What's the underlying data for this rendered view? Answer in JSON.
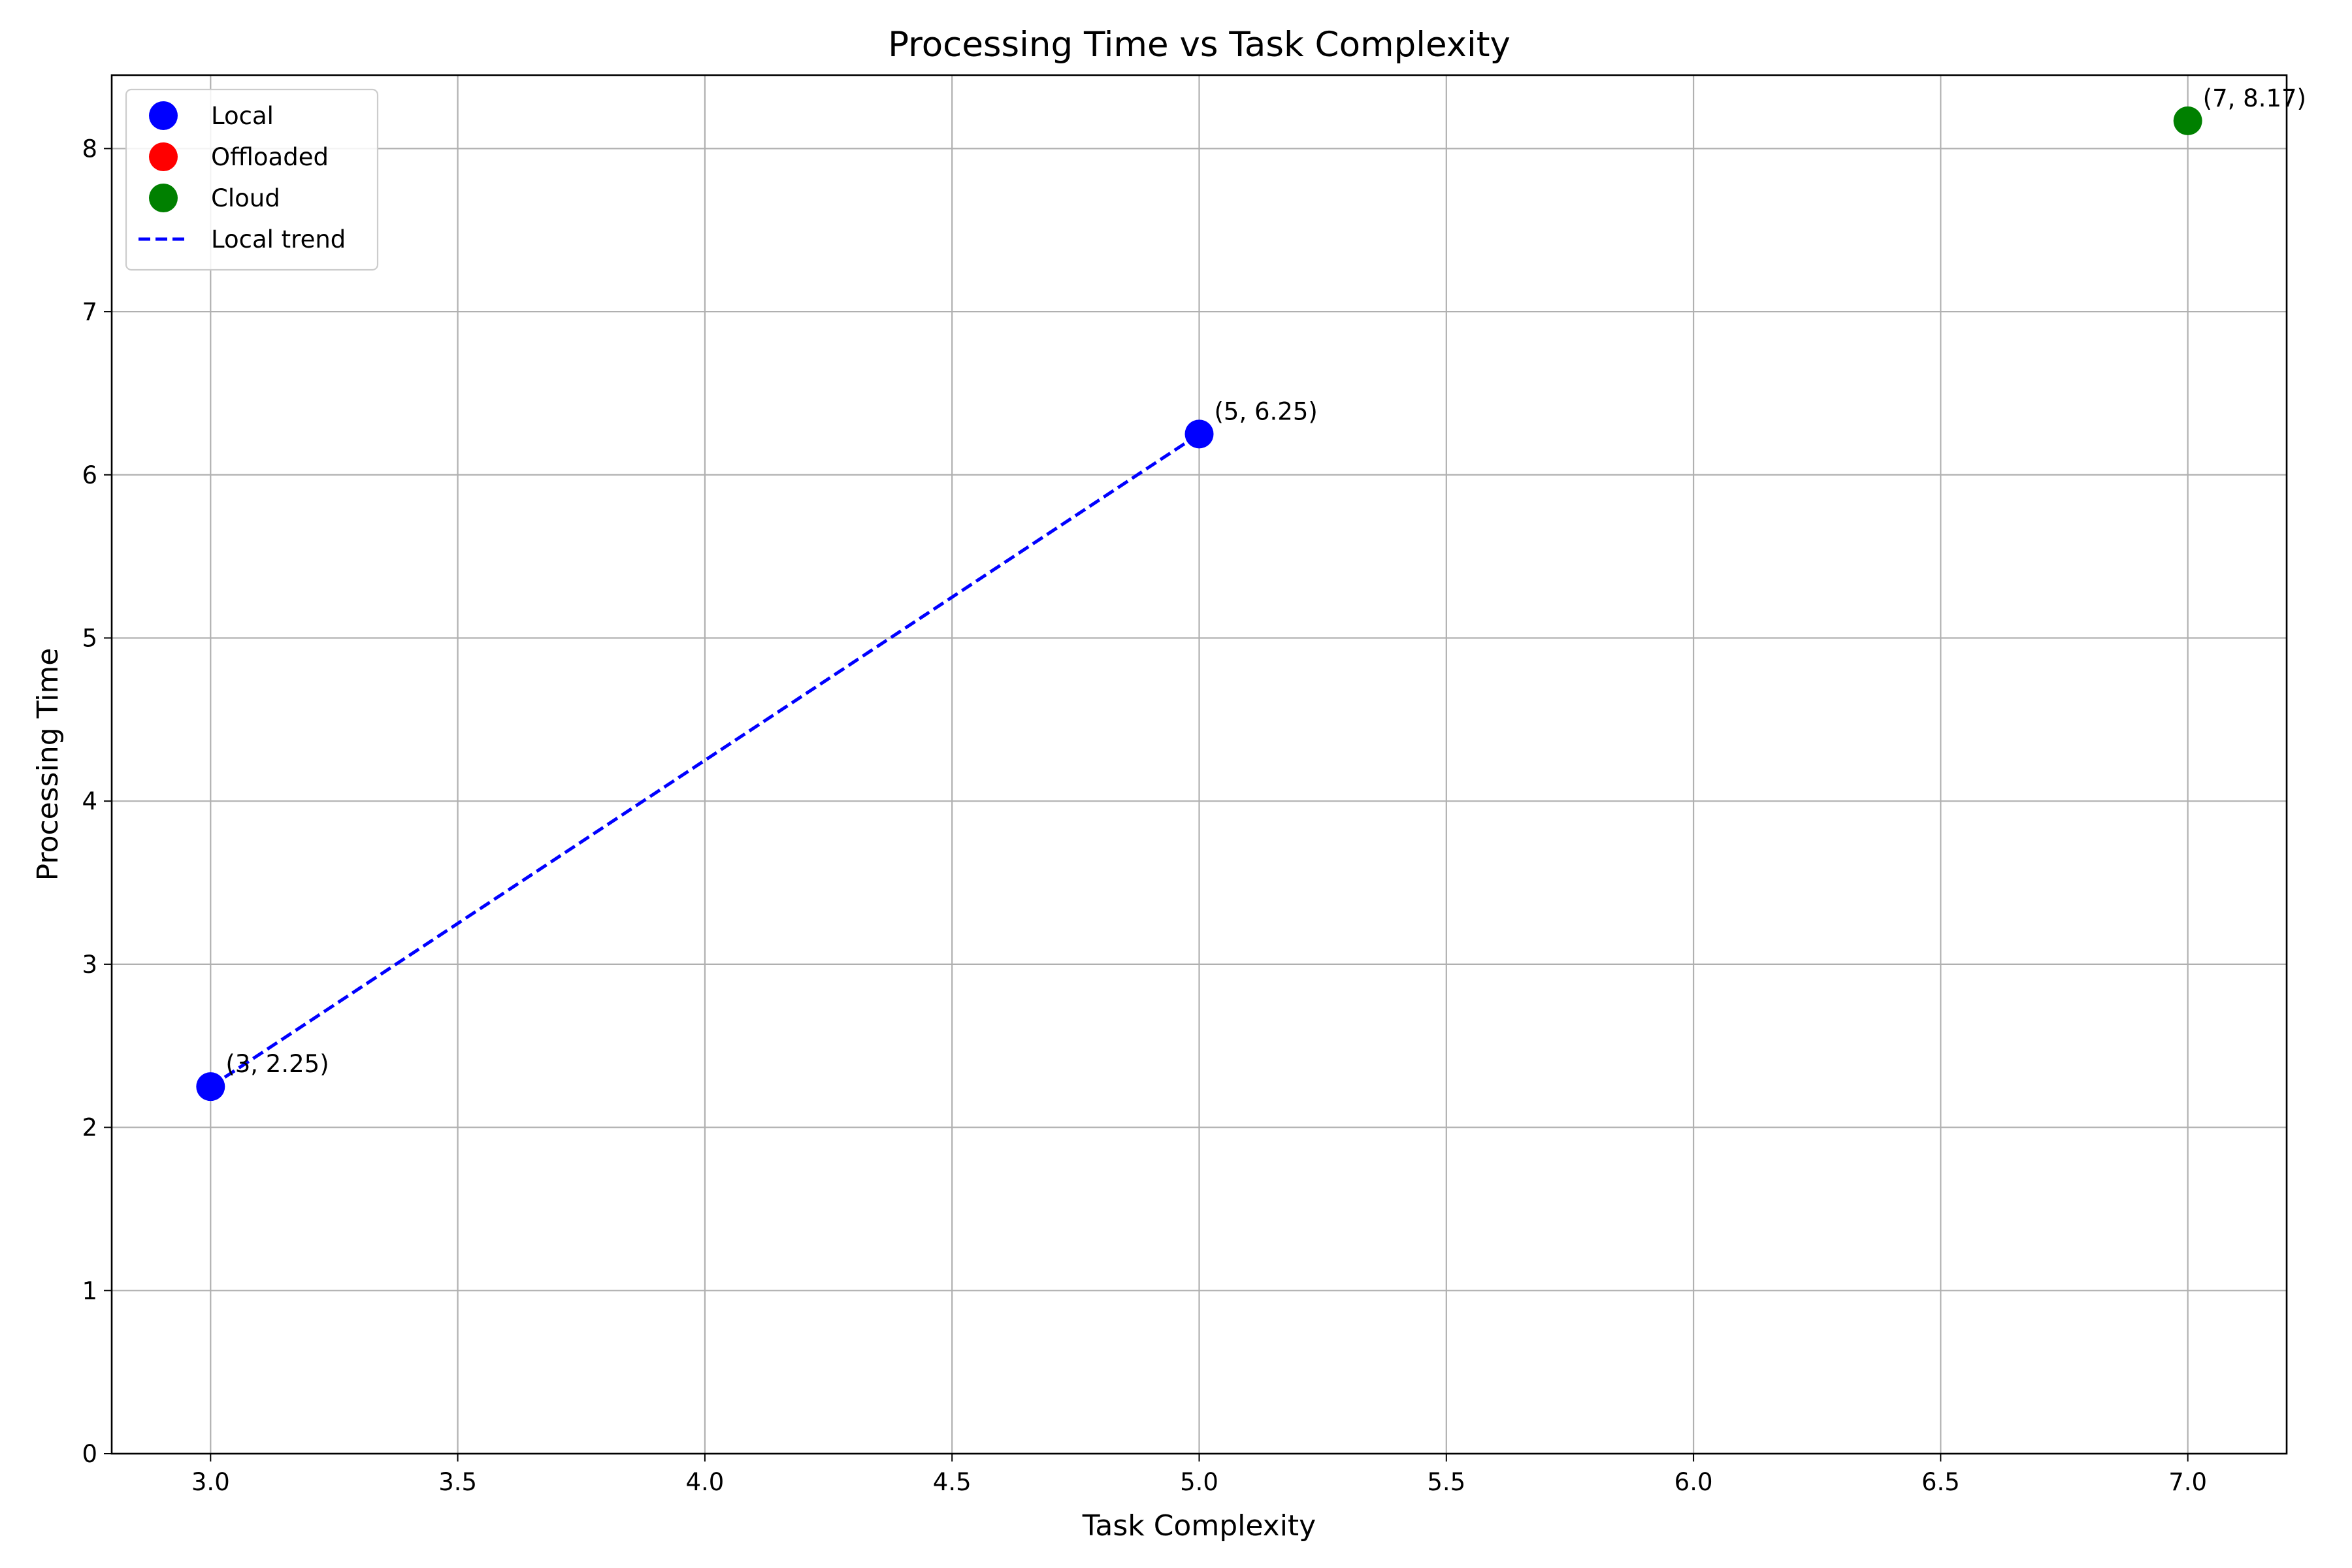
{
  "chart_data": {
    "type": "scatter",
    "title": "Processing Time vs Task Complexity",
    "xlabel": "Task Complexity",
    "ylabel": "Processing Time",
    "xlim": [
      2.8,
      7.2
    ],
    "ylim": [
      0,
      8.45
    ],
    "x_ticks": [
      3.0,
      3.5,
      4.0,
      4.5,
      5.0,
      5.5,
      6.0,
      6.5,
      7.0
    ],
    "x_tick_labels": [
      "3.0",
      "3.5",
      "4.0",
      "4.5",
      "5.0",
      "5.5",
      "6.0",
      "6.5",
      "7.0"
    ],
    "y_ticks": [
      0,
      1,
      2,
      3,
      4,
      5,
      6,
      7,
      8
    ],
    "y_tick_labels": [
      "0",
      "1",
      "2",
      "3",
      "4",
      "5",
      "6",
      "7",
      "8"
    ],
    "grid": true,
    "legend_position": "top-left",
    "series": [
      {
        "name": "Local",
        "kind": "scatter",
        "color": "#0000ff",
        "points": [
          {
            "x": 3,
            "y": 2.25,
            "label": "(3, 2.25)"
          },
          {
            "x": 5,
            "y": 6.25,
            "label": "(5, 6.25)"
          }
        ]
      },
      {
        "name": "Offloaded",
        "kind": "scatter",
        "color": "#ff0000",
        "points": []
      },
      {
        "name": "Cloud",
        "kind": "scatter",
        "color": "#008000",
        "points": [
          {
            "x": 7,
            "y": 8.17,
            "label": "(7, 8.17)"
          }
        ]
      },
      {
        "name": "Local trend",
        "kind": "line",
        "style": "dashed",
        "color": "#0000ff",
        "points": [
          {
            "x": 3,
            "y": 2.25
          },
          {
            "x": 5,
            "y": 6.25
          }
        ]
      }
    ]
  }
}
